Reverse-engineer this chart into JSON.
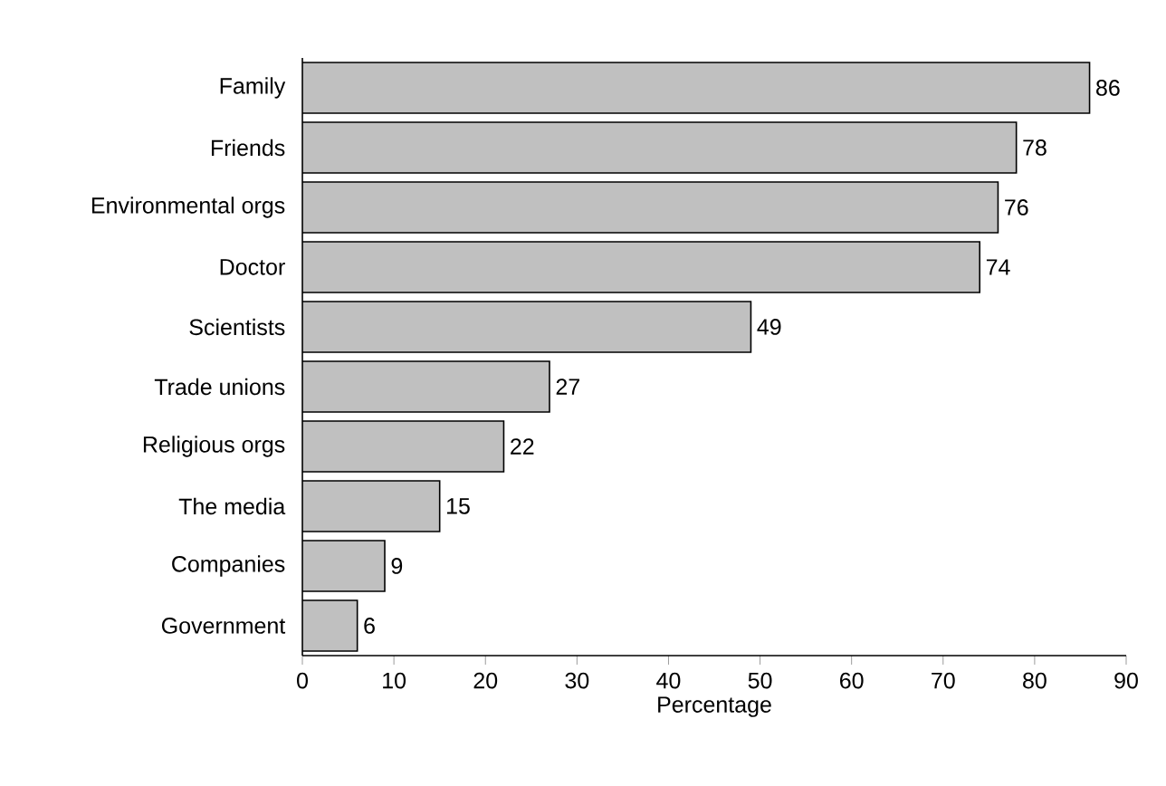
{
  "chart_data": {
    "type": "bar",
    "orientation": "horizontal",
    "xlabel": "Percentage",
    "categories": [
      "Family",
      "Friends",
      "Environmental orgs",
      "Doctor",
      "Scientists",
      "Trade unions",
      "Religious orgs",
      "The media",
      "Companies",
      "Government"
    ],
    "values": [
      86,
      78,
      76,
      74,
      49,
      27,
      22,
      15,
      9,
      6
    ],
    "color": "#c0c0c0",
    "xlim": [
      0,
      90
    ],
    "xticks": [
      0,
      10,
      20,
      30,
      40,
      50,
      60,
      70,
      80,
      90
    ],
    "data_labels": true,
    "grid": false
  }
}
